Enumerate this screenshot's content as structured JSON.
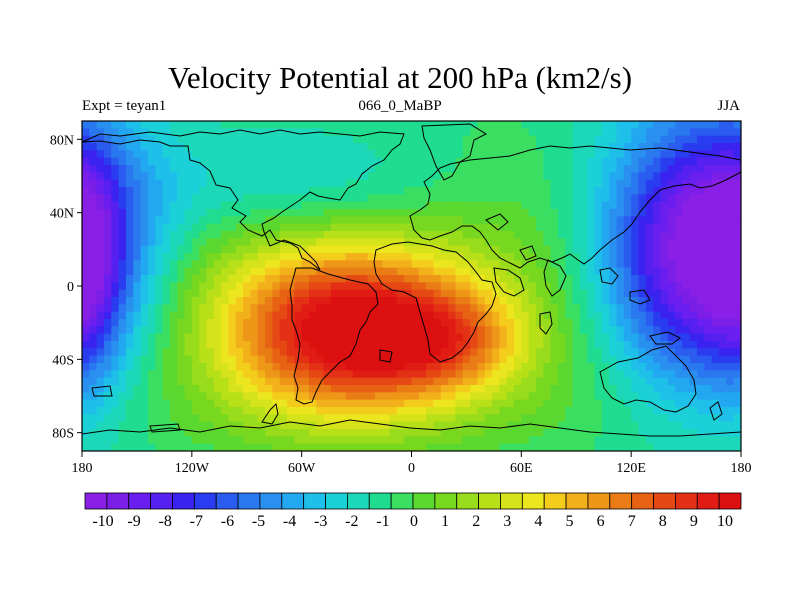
{
  "title": "Velocity Potential at 200 hPa (km2/s)",
  "subtitle_left": "Expt = teyan1",
  "subtitle_center": "066_0_MaBP",
  "subtitle_right": "JJA",
  "lat_ticks": [
    {
      "label": "80N",
      "lat": 80
    },
    {
      "label": "40N",
      "lat": 40
    },
    {
      "label": "0",
      "lat": 0
    },
    {
      "label": "40S",
      "lat": -40
    },
    {
      "label": "80S",
      "lat": -80
    }
  ],
  "lon_ticks": [
    {
      "label": "180",
      "lon": -180
    },
    {
      "label": "120W",
      "lon": -120
    },
    {
      "label": "60W",
      "lon": -60
    },
    {
      "label": "0",
      "lon": 0
    },
    {
      "label": "60E",
      "lon": 60
    },
    {
      "label": "120E",
      "lon": 120
    },
    {
      "label": "180",
      "lon": 180
    }
  ],
  "colorbar": {
    "labels": [
      "-10",
      "-9",
      "-8",
      "-7",
      "-6",
      "-5",
      "-4",
      "-3",
      "-2",
      "-1",
      "0",
      "1",
      "2",
      "3",
      "4",
      "5",
      "6",
      "7",
      "8",
      "9",
      "10"
    ],
    "colors": [
      "#8a1fe6",
      "#7a1ee8",
      "#6a1ff0",
      "#5520f0",
      "#3a23f0",
      "#2a3cf0",
      "#2a5cf0",
      "#2a78f0",
      "#2a90f0",
      "#22a8f0",
      "#1ec0ea",
      "#1cd0d8",
      "#1cd8b8",
      "#20dc90",
      "#3ade60",
      "#5ad830",
      "#78d820",
      "#98dc1c",
      "#b8e018",
      "#d6e21a",
      "#ece61e",
      "#f4cc1c",
      "#f2b01a",
      "#ee9618",
      "#ea7c16",
      "#e86214",
      "#e64814",
      "#e43014",
      "#e01c14",
      "#dc1010"
    ],
    "vmin": -10,
    "vmax": 10
  },
  "chart_data": {
    "type": "contour-map",
    "title": "Velocity Potential at 200 hPa (km2/s)",
    "variable": "Velocity Potential at 200 hPa",
    "units": "km2/s",
    "experiment": "teyan1",
    "period": "066_0_MaBP",
    "season": "JJA",
    "xlim": [
      -180,
      180
    ],
    "ylim": [
      -90,
      90
    ],
    "levels": [
      -10,
      10
    ],
    "centers": [
      {
        "name": "positive maximum (South America / South Atlantic)",
        "lon": -35,
        "lat": -25,
        "value": 10.2
      },
      {
        "name": "negative minimum (western Pacific)",
        "lon": 160,
        "lat": 20,
        "value": -10.5
      },
      {
        "name": "negative minimum (eastern Pacific)",
        "lon": -178,
        "lat": 10,
        "value": -9.5
      }
    ]
  }
}
